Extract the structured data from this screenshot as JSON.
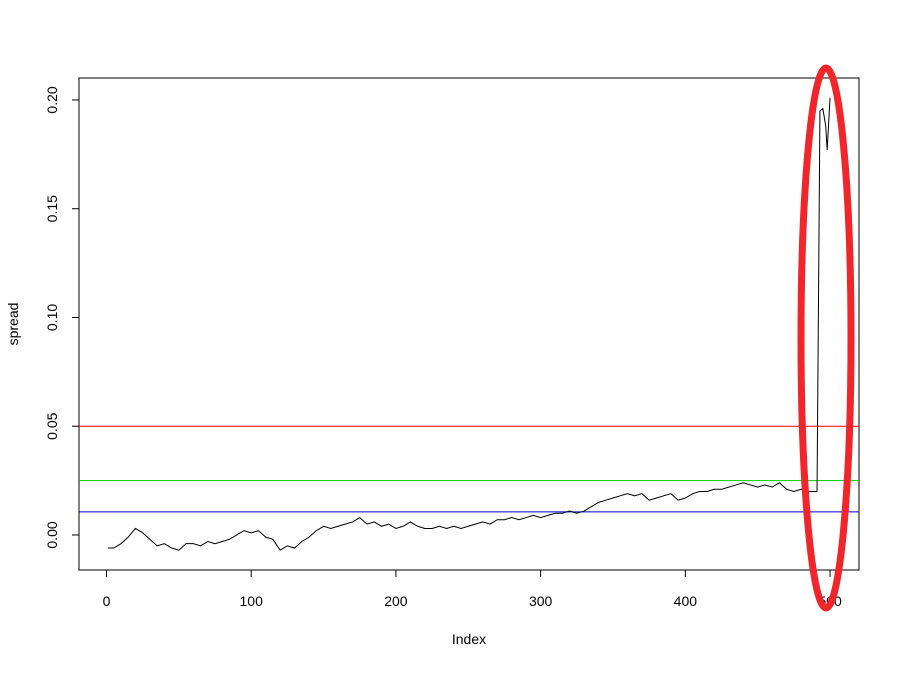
{
  "chart_data": {
    "type": "line",
    "xlabel": "Index",
    "ylabel": "spread",
    "x": [
      1,
      5,
      10,
      15,
      20,
      25,
      30,
      35,
      40,
      45,
      50,
      55,
      60,
      65,
      70,
      75,
      80,
      85,
      90,
      95,
      100,
      105,
      110,
      115,
      120,
      125,
      130,
      135,
      140,
      145,
      150,
      155,
      160,
      165,
      170,
      175,
      180,
      185,
      190,
      195,
      200,
      205,
      210,
      215,
      220,
      225,
      230,
      235,
      240,
      245,
      250,
      255,
      260,
      265,
      270,
      275,
      280,
      285,
      290,
      295,
      300,
      305,
      310,
      315,
      320,
      325,
      330,
      335,
      340,
      345,
      350,
      355,
      360,
      365,
      370,
      375,
      380,
      385,
      390,
      395,
      400,
      405,
      410,
      415,
      420,
      425,
      430,
      435,
      440,
      445,
      450,
      455,
      460,
      465,
      470,
      475,
      480,
      485,
      490,
      491,
      493,
      495,
      497,
      498,
      500
    ],
    "series": [
      {
        "name": "spread",
        "color": "#000000",
        "values": [
          -0.006,
          -0.006,
          -0.004,
          -0.001,
          0.003,
          0.001,
          -0.002,
          -0.005,
          -0.004,
          -0.006,
          -0.007,
          -0.004,
          -0.004,
          -0.005,
          -0.003,
          -0.004,
          -0.003,
          -0.002,
          0.0,
          0.002,
          0.001,
          0.002,
          -0.001,
          -0.002,
          -0.007,
          -0.005,
          -0.006,
          -0.003,
          -0.001,
          0.002,
          0.004,
          0.003,
          0.004,
          0.005,
          0.006,
          0.008,
          0.005,
          0.006,
          0.004,
          0.005,
          0.003,
          0.004,
          0.006,
          0.004,
          0.003,
          0.003,
          0.004,
          0.003,
          0.004,
          0.003,
          0.004,
          0.005,
          0.006,
          0.005,
          0.007,
          0.007,
          0.008,
          0.007,
          0.008,
          0.009,
          0.008,
          0.009,
          0.01,
          0.01,
          0.011,
          0.01,
          0.011,
          0.013,
          0.015,
          0.016,
          0.017,
          0.018,
          0.019,
          0.018,
          0.019,
          0.016,
          0.017,
          0.018,
          0.019,
          0.016,
          0.017,
          0.019,
          0.02,
          0.02,
          0.021,
          0.021,
          0.022,
          0.023,
          0.024,
          0.023,
          0.022,
          0.023,
          0.022,
          0.024,
          0.021,
          0.02,
          0.021,
          0.02,
          0.02,
          0.02,
          0.195,
          0.196,
          0.188,
          0.177,
          0.201
        ]
      }
    ],
    "hlines": [
      {
        "value": 0.05,
        "color": "#ff0000"
      },
      {
        "value": 0.025,
        "color": "#00cc00"
      },
      {
        "value": 0.0106,
        "color": "#0000cc"
      }
    ],
    "xlim": [
      -19,
      520
    ],
    "ylim": [
      -0.0161,
      0.2101
    ],
    "xticks": [
      0,
      100,
      200,
      300,
      400,
      500
    ],
    "yticks": [
      {
        "value": 0,
        "label": "0.00"
      },
      {
        "value": 0.05,
        "label": "0.05"
      },
      {
        "value": 0.1,
        "label": "0.10"
      },
      {
        "value": 0.15,
        "label": "0.15"
      },
      {
        "value": 0.2,
        "label": "0.20"
      }
    ]
  }
}
